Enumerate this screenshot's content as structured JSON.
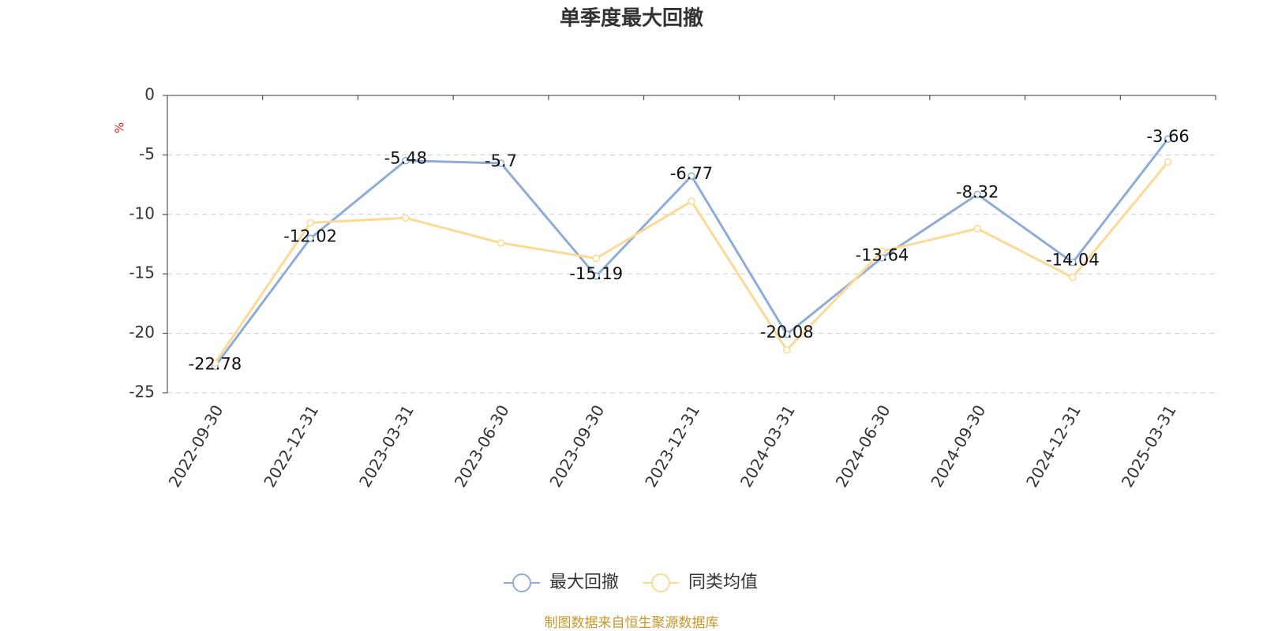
{
  "chart_data": {
    "type": "line",
    "title": "单季度最大回撤",
    "y_label": "%",
    "categories": [
      "2022-09-30",
      "2022-12-31",
      "2023-03-31",
      "2023-06-30",
      "2023-09-30",
      "2023-12-31",
      "2024-03-31",
      "2024-06-30",
      "2024-09-30",
      "2024-12-31",
      "2025-03-31"
    ],
    "series": [
      {
        "name": "最大回撤",
        "color": "#8eacd8",
        "values": [
          -22.78,
          -12.02,
          -5.48,
          -5.7,
          -15.19,
          -6.77,
          -20.08,
          -13.64,
          -8.32,
          -14.04,
          -3.66
        ],
        "data_labels": true
      },
      {
        "name": "同类均值",
        "color": "#fcd994",
        "values": [
          -22.5,
          -10.7,
          -10.3,
          -12.4,
          -13.7,
          -8.9,
          -21.4,
          -13.1,
          -11.2,
          -15.3,
          -5.6
        ],
        "data_labels": false
      }
    ],
    "ylim": [
      -25,
      0
    ],
    "yticks": [
      0,
      -5,
      -10,
      -15,
      -20,
      -25
    ],
    "grid": true,
    "legend": "bottom",
    "source": "制图数据来自恒生聚源数据库"
  }
}
